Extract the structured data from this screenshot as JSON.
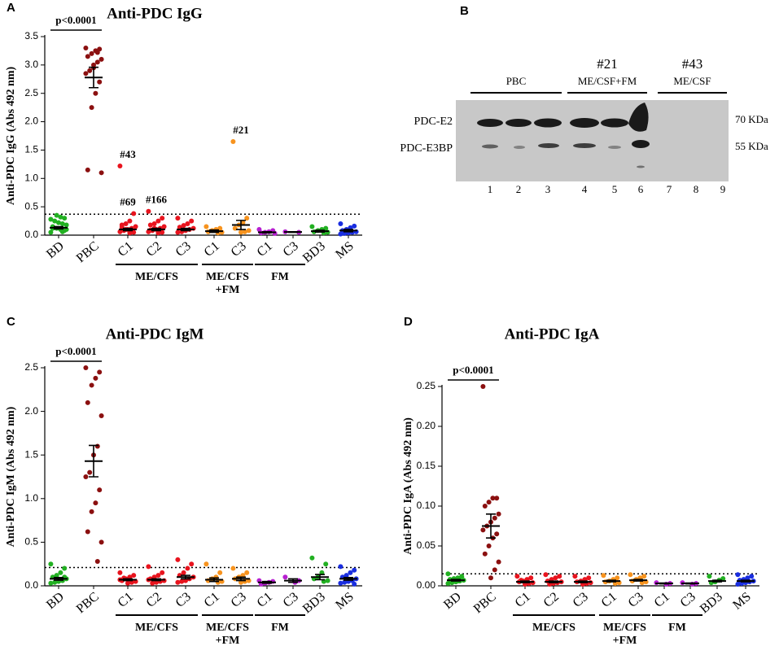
{
  "chart_data": [
    {
      "type": "dotplot",
      "panel": "A",
      "title": "Anti-PDC IgG",
      "y_label": "Anti-PDC IgG (Abs 492 nm)",
      "ylim": [
        0,
        3.5
      ],
      "yticks": [
        {
          "value": 0,
          "label": "0.0"
        },
        0.5,
        {
          "value": 1,
          "label": "1.0"
        },
        1.5,
        {
          "value": 2,
          "label": "2.0"
        },
        2.5,
        {
          "value": 3,
          "label": "3.0"
        },
        3.5
      ],
      "cutoff": 0.37,
      "p_label": "p<0.0001",
      "groups": [
        [
          "ME/CFS"
        ],
        [
          "ME/CFS",
          "+FM"
        ],
        [
          "FM"
        ]
      ],
      "series": [
        {
          "name": "BD",
          "color": "#22b022",
          "values": [
            0.05,
            0.08,
            0.1,
            0.12,
            0.15,
            0.18,
            0.2,
            0.22,
            0.25,
            0.28,
            0.3,
            0.32,
            0.35,
            0.12,
            0.1,
            0.06
          ],
          "mean": 0.13,
          "sem": 0.02
        },
        {
          "name": "PBC",
          "color": "#8b1010",
          "values": [
            3.3,
            3.28,
            3.25,
            3.2,
            3.15,
            3.1,
            3.05,
            3.0,
            2.9,
            2.85,
            2.7,
            2.5,
            2.25,
            1.15,
            1.1,
            3.22,
            2.95
          ],
          "mean": 2.78,
          "sem": 0.18
        },
        {
          "name": "C1",
          "color": "#e8141e",
          "values": [
            1.22,
            0.38,
            0.25,
            0.2,
            0.18,
            0.15,
            0.12,
            0.1,
            0.08,
            0.06,
            0.05,
            0.04,
            0.1,
            0.14
          ],
          "mean": 0.1,
          "sem": 0.02
        },
        {
          "name": "C2",
          "color": "#e8141e",
          "values": [
            0.42,
            0.3,
            0.25,
            0.2,
            0.18,
            0.15,
            0.12,
            0.1,
            0.08,
            0.06,
            0.05,
            0.04,
            0.12,
            0.09
          ],
          "mean": 0.1,
          "sem": 0.02
        },
        {
          "name": "C3",
          "color": "#e8141e",
          "values": [
            0.3,
            0.25,
            0.2,
            0.17,
            0.14,
            0.12,
            0.1,
            0.08,
            0.06,
            0.05
          ],
          "mean": 0.1,
          "sem": 0.02
        },
        {
          "name": "C1",
          "color": "#f7931e",
          "values": [
            0.15,
            0.12,
            0.1,
            0.08,
            0.06,
            0.05,
            0.04
          ],
          "mean": 0.07,
          "sem": 0.02
        },
        {
          "name": "C3",
          "color": "#f7931e",
          "values": [
            1.65,
            0.3,
            0.22,
            0.18,
            0.12,
            0.08,
            0.06,
            0.05
          ],
          "mean": 0.18,
          "sem": 0.08
        },
        {
          "name": "C1",
          "color": "#b71fd1",
          "values": [
            0.1,
            0.08,
            0.06,
            0.05,
            0.04,
            0.03
          ],
          "mean": 0.05,
          "sem": 0.01
        },
        {
          "name": "C3",
          "color": "#b71fd1",
          "values": [
            0.06,
            0.05
          ],
          "mean": 0.055,
          "sem": 0.005
        },
        {
          "name": "BD3",
          "color": "#22b022",
          "values": [
            0.15,
            0.12,
            0.1,
            0.08,
            0.06,
            0.05,
            0.04
          ],
          "mean": 0.07,
          "sem": 0.015
        },
        {
          "name": "MS",
          "color": "#1a2ee0",
          "values": [
            0.2,
            0.16,
            0.13,
            0.1,
            0.08,
            0.06,
            0.05,
            0.04,
            0.03,
            0.02
          ],
          "mean": 0.08,
          "sem": 0.02
        }
      ],
      "annotations": [
        {
          "text": "#43",
          "series": 2,
          "point": 0
        },
        {
          "text": "#69",
          "series": 2,
          "point": 1
        },
        {
          "text": "#166",
          "series": 3,
          "point": 0
        },
        {
          "text": "#21",
          "series": 6,
          "point": 0
        }
      ]
    },
    {
      "type": "dotplot",
      "panel": "C",
      "title": "Anti-PDC IgM",
      "y_label": "Anti-PDC IgM (Abs 492 nm)",
      "ylim": [
        0,
        2.5
      ],
      "yticks": [
        {
          "value": 0,
          "label": "0.0"
        },
        0.5,
        {
          "value": 1,
          "label": "1.0"
        },
        1.5,
        {
          "value": 2,
          "label": "2.0"
        },
        2.5
      ],
      "cutoff": 0.21,
      "p_label": "p<0.0001",
      "groups": [
        [
          "ME/CFS"
        ],
        [
          "ME/CFS",
          "+FM"
        ],
        [
          "FM"
        ]
      ],
      "series": [
        {
          "name": "BD",
          "color": "#22b022",
          "values": [
            0.25,
            0.2,
            0.15,
            0.12,
            0.1,
            0.08,
            0.06,
            0.05,
            0.04,
            0.03,
            0.1,
            0.07
          ],
          "mean": 0.08,
          "sem": 0.015
        },
        {
          "name": "PBC",
          "color": "#8b1010",
          "values": [
            2.5,
            2.45,
            2.38,
            2.3,
            2.1,
            1.95,
            1.6,
            1.5,
            1.3,
            1.25,
            1.1,
            0.95,
            0.85,
            0.62,
            0.5,
            0.28
          ],
          "mean": 1.43,
          "sem": 0.18
        },
        {
          "name": "C1",
          "color": "#e8141e",
          "values": [
            0.15,
            0.12,
            0.1,
            0.08,
            0.06,
            0.05,
            0.04,
            0.03,
            0.09,
            0.07
          ],
          "mean": 0.07,
          "sem": 0.01
        },
        {
          "name": "C2",
          "color": "#e8141e",
          "values": [
            0.22,
            0.15,
            0.12,
            0.1,
            0.08,
            0.06,
            0.05,
            0.04,
            0.03,
            0.07
          ],
          "mean": 0.07,
          "sem": 0.01
        },
        {
          "name": "C3",
          "color": "#e8141e",
          "values": [
            0.3,
            0.25,
            0.2,
            0.15,
            0.12,
            0.1,
            0.08,
            0.06,
            0.05,
            0.04
          ],
          "mean": 0.1,
          "sem": 0.02
        },
        {
          "name": "C1",
          "color": "#f7931e",
          "values": [
            0.25,
            0.15,
            0.1,
            0.08,
            0.06,
            0.05,
            0.04
          ],
          "mean": 0.07,
          "sem": 0.02
        },
        {
          "name": "C3",
          "color": "#f7931e",
          "values": [
            0.2,
            0.15,
            0.12,
            0.1,
            0.08,
            0.06,
            0.05,
            0.04
          ],
          "mean": 0.08,
          "sem": 0.02
        },
        {
          "name": "C1",
          "color": "#b71fd1",
          "values": [
            0.06,
            0.05,
            0.04,
            0.03,
            0.02
          ],
          "mean": 0.04,
          "sem": 0.01
        },
        {
          "name": "C3",
          "color": "#b71fd1",
          "values": [
            0.1,
            0.06,
            0.04
          ],
          "mean": 0.06,
          "sem": 0.02
        },
        {
          "name": "BD3",
          "color": "#22b022",
          "values": [
            0.32,
            0.25,
            0.15,
            0.1,
            0.08,
            0.06,
            0.05
          ],
          "mean": 0.1,
          "sem": 0.03
        },
        {
          "name": "MS",
          "color": "#1a2ee0",
          "values": [
            0.22,
            0.18,
            0.15,
            0.12,
            0.1,
            0.08,
            0.06,
            0.05,
            0.04,
            0.03,
            0.02,
            0.07
          ],
          "mean": 0.08,
          "sem": 0.015
        }
      ]
    },
    {
      "type": "dotplot",
      "panel": "D",
      "title": "Anti-PDC IgA",
      "y_label": "Anti-PDC IgA (Abs 492 nm)",
      "ylim": [
        0,
        0.25
      ],
      "yticks": [
        {
          "value": 0,
          "label": "0.00"
        },
        0.05,
        {
          "value": 0.1,
          "label": "0.10"
        },
        0.15,
        {
          "value": 0.2,
          "label": "0.20"
        },
        0.25
      ],
      "cutoff": 0.015,
      "p_label": "p<0.0001",
      "groups": [
        [
          "ME/CFS"
        ],
        [
          "ME/CFS",
          "+FM"
        ],
        [
          "FM"
        ]
      ],
      "series": [
        {
          "name": "BD",
          "color": "#22b022",
          "values": [
            0.015,
            0.012,
            0.01,
            0.009,
            0.008,
            0.007,
            0.006,
            0.005,
            0.004,
            0.003,
            0.011,
            0.006
          ],
          "mean": 0.007,
          "sem": 0.001
        },
        {
          "name": "PBC",
          "color": "#8b1010",
          "values": [
            0.25,
            0.11,
            0.11,
            0.105,
            0.1,
            0.09,
            0.085,
            0.08,
            0.075,
            0.07,
            0.065,
            0.06,
            0.05,
            0.04,
            0.03,
            0.02,
            0.01
          ],
          "mean": 0.075,
          "sem": 0.015
        },
        {
          "name": "C1",
          "color": "#e8141e",
          "values": [
            0.012,
            0.01,
            0.008,
            0.006,
            0.005,
            0.004,
            0.003,
            0.002,
            0.007
          ],
          "mean": 0.005,
          "sem": 0.001
        },
        {
          "name": "C2",
          "color": "#e8141e",
          "values": [
            0.014,
            0.012,
            0.01,
            0.008,
            0.006,
            0.005,
            0.004,
            0.003,
            0.002
          ],
          "mean": 0.005,
          "sem": 0.001
        },
        {
          "name": "C3",
          "color": "#e8141e",
          "values": [
            0.012,
            0.01,
            0.008,
            0.006,
            0.005,
            0.004,
            0.003,
            0.002
          ],
          "mean": 0.005,
          "sem": 0.001
        },
        {
          "name": "C1",
          "color": "#f7931e",
          "values": [
            0.013,
            0.01,
            0.008,
            0.006,
            0.005,
            0.004,
            0.003
          ],
          "mean": 0.006,
          "sem": 0.001
        },
        {
          "name": "C3",
          "color": "#f7931e",
          "values": [
            0.014,
            0.012,
            0.01,
            0.008,
            0.006,
            0.005,
            0.004
          ],
          "mean": 0.007,
          "sem": 0.001
        },
        {
          "name": "C1",
          "color": "#b71fd1",
          "values": [
            0.004,
            0.003,
            0.002
          ],
          "mean": 0.003,
          "sem": 0.0005
        },
        {
          "name": "C3",
          "color": "#b71fd1",
          "values": [
            0.004,
            0.003,
            0.002
          ],
          "mean": 0.003,
          "sem": 0.0005
        },
        {
          "name": "BD3",
          "color": "#22b022",
          "values": [
            0.012,
            0.009,
            0.007,
            0.005,
            0.004
          ],
          "mean": 0.006,
          "sem": 0.001
        },
        {
          "name": "MS",
          "color": "#1a2ee0",
          "values": [
            0.014,
            0.012,
            0.01,
            0.008,
            0.007,
            0.006,
            0.005,
            0.004,
            0.003,
            0.002
          ],
          "mean": 0.006,
          "sem": 0.001
        }
      ]
    }
  ],
  "blot": {
    "panel": "B",
    "groups": [
      {
        "label": "PBC"
      },
      {
        "number": "#21",
        "label": "ME/CSF+FM"
      },
      {
        "number": "#43",
        "label": "ME/CSF"
      }
    ],
    "lanes": [
      "1",
      "2",
      "3",
      "4",
      "5",
      "6",
      "7",
      "8",
      "9"
    ],
    "bands": [
      "PDC-E2",
      "PDC-E3BP"
    ],
    "sizes": [
      "70 KDa",
      "55 KDa"
    ]
  }
}
